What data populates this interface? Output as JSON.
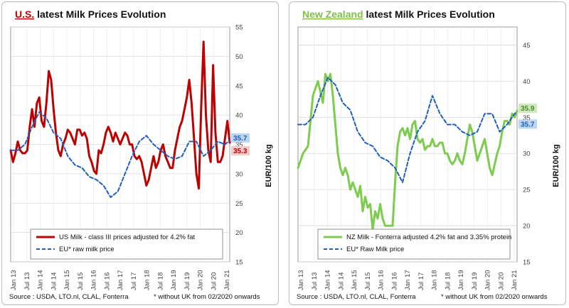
{
  "chart_data": [
    {
      "type": "line",
      "title_country": "U.S.",
      "title_rest": " latest Milk Prices Evolution",
      "accent_color": "#c00000",
      "ylabel": "EUR/100 kg",
      "ylim": [
        15,
        55
      ],
      "yticks": [
        15,
        20,
        25,
        30,
        35,
        40,
        45,
        50,
        55
      ],
      "x_labels": [
        "Jan 13",
        "Jul 13",
        "Jan 14",
        "Jul 14",
        "Jan 15",
        "Jul 15",
        "Jan 16",
        "Jul 16",
        "Jan 17",
        "Jul 17",
        "Jan 18",
        "Jul 18",
        "Jan 19",
        "Jul 19",
        "Jan 20",
        "Jul 20",
        "Jan 21"
      ],
      "series": [
        {
          "name": "US Milk - class III prices adjusted for 4.2% fat",
          "color": "#c00000",
          "style": "solid",
          "values": [
            [
              0,
              34
            ],
            [
              1,
              32
            ],
            [
              2,
              33.5
            ],
            [
              3,
              35.5
            ],
            [
              4,
              34
            ],
            [
              5,
              33.5
            ],
            [
              6,
              33.5
            ],
            [
              7,
              34
            ],
            [
              8,
              38
            ],
            [
              9,
              41
            ],
            [
              10,
              38
            ],
            [
              11,
              42
            ],
            [
              12,
              43
            ],
            [
              13,
              39
            ],
            [
              14,
              38
            ],
            [
              15,
              42
            ],
            [
              16,
              47.5
            ],
            [
              17,
              46
            ],
            [
              18,
              41
            ],
            [
              19,
              37
            ],
            [
              20,
              34
            ],
            [
              21,
              33
            ],
            [
              22,
              35
            ],
            [
              23,
              36
            ],
            [
              24,
              37.5
            ],
            [
              25,
              37
            ],
            [
              26,
              36
            ],
            [
              27,
              35
            ],
            [
              28,
              37.5
            ],
            [
              29,
              37.5
            ],
            [
              30,
              36.5
            ],
            [
              31,
              37
            ],
            [
              32,
              36
            ],
            [
              33,
              33
            ],
            [
              34,
              32
            ],
            [
              35,
              30.5
            ],
            [
              36,
              30
            ],
            [
              37,
              34
            ],
            [
              38,
              33.5
            ],
            [
              39,
              35
            ],
            [
              40,
              37
            ],
            [
              41,
              38
            ],
            [
              42,
              37
            ],
            [
              43,
              35.5
            ],
            [
              44,
              37
            ],
            [
              45,
              36
            ],
            [
              46,
              35
            ],
            [
              47,
              36
            ],
            [
              48,
              37
            ],
            [
              49,
              36.5
            ],
            [
              50,
              35
            ],
            [
              51,
              35
            ],
            [
              52,
              33
            ],
            [
              53,
              32.5
            ],
            [
              54,
              33
            ],
            [
              55,
              32
            ],
            [
              56,
              30
            ],
            [
              57,
              28
            ],
            [
              58,
              29
            ],
            [
              59,
              31
            ],
            [
              60,
              33
            ],
            [
              61,
              31
            ],
            [
              62,
              32
            ],
            [
              63,
              34
            ],
            [
              64,
              35
            ],
            [
              65,
              33
            ],
            [
              66,
              32
            ],
            [
              67,
              31
            ],
            [
              68,
              31
            ],
            [
              69,
              34
            ],
            [
              70,
              36
            ],
            [
              71,
              38
            ],
            [
              72,
              39
            ],
            [
              73,
              41
            ],
            [
              74,
              43
            ],
            [
              75,
              46
            ],
            [
              76,
              42
            ],
            [
              77,
              36
            ],
            [
              78,
              30
            ],
            [
              79,
              27.5
            ],
            [
              80,
              41
            ],
            [
              81,
              52.5
            ],
            [
              82,
              40
            ],
            [
              83,
              34
            ],
            [
              84,
              32
            ],
            [
              85,
              48.5
            ],
            [
              86,
              37
            ],
            [
              87,
              32
            ],
            [
              88,
              32
            ],
            [
              89,
              33
            ],
            [
              90,
              36
            ],
            [
              91,
              39
            ],
            [
              92,
              35.3
            ]
          ]
        },
        {
          "name": "EU* raw milk price",
          "color": "#1f5fbf",
          "style": "dashed",
          "values": [
            [
              0,
              34
            ],
            [
              3,
              34
            ],
            [
              6,
              35
            ],
            [
              9,
              38
            ],
            [
              12,
              40.5
            ],
            [
              15,
              39.5
            ],
            [
              18,
              37
            ],
            [
              21,
              36
            ],
            [
              24,
              33
            ],
            [
              27,
              31.5
            ],
            [
              30,
              31
            ],
            [
              33,
              29.5
            ],
            [
              36,
              29
            ],
            [
              39,
              28
            ],
            [
              42,
              26
            ],
            [
              45,
              27
            ],
            [
              48,
              30
            ],
            [
              51,
              33
            ],
            [
              54,
              35.5
            ],
            [
              57,
              36.5
            ],
            [
              60,
              35
            ],
            [
              63,
              34
            ],
            [
              66,
              33
            ],
            [
              69,
              32.5
            ],
            [
              72,
              33
            ],
            [
              75,
              35.5
            ],
            [
              78,
              35.5
            ],
            [
              81,
              33
            ],
            [
              84,
              34
            ],
            [
              87,
              35.5
            ],
            [
              90,
              35
            ],
            [
              92,
              35.7
            ]
          ]
        }
      ],
      "end_labels": [
        {
          "text": "35.7",
          "bg": "#bcd6ee",
          "color": "#1f5fbf"
        },
        {
          "text": "35.3",
          "bg": "#f5c9c9",
          "color": "#c00000"
        }
      ],
      "source": "Source : USDA, LTO.nl, CLAL, Fonterra",
      "footnote": "* without UK from 02/2020 onwards"
    },
    {
      "type": "line",
      "title_country": "New Zealand",
      "title_rest": " latest Milk Prices Evolution",
      "accent_color": "#7dbf4a",
      "ylabel": "EUR/100 kg",
      "ylim": [
        15,
        47.5
      ],
      "yticks": [
        15,
        20,
        25,
        30,
        35,
        40,
        45
      ],
      "x_labels": [
        "Jan 13",
        "Jul 13",
        "Jan 14",
        "Jul 14",
        "Jan 15",
        "Jul 15",
        "Jan 16",
        "Jul 16",
        "Jan 17",
        "Jul 17",
        "Jan 18",
        "Jul 18",
        "Jan 19",
        "Jul 19",
        "Jan 20",
        "Jul 20",
        "Jan 21"
      ],
      "series": [
        {
          "name": "NZ Milk - Fonterra adjusted 4.2% fat and 3.35% protein",
          "color": "#7dcc4e",
          "style": "solid",
          "values": [
            [
              0,
              28
            ],
            [
              2,
              30
            ],
            [
              4,
              31
            ],
            [
              6,
              38
            ],
            [
              8,
              40
            ],
            [
              10,
              37
            ],
            [
              11,
              41
            ],
            [
              12,
              40
            ],
            [
              13,
              41
            ],
            [
              14,
              38
            ],
            [
              15,
              34
            ],
            [
              16,
              30
            ],
            [
              17,
              28
            ],
            [
              18,
              27
            ],
            [
              19,
              28
            ],
            [
              20,
              27
            ],
            [
              21,
              25
            ],
            [
              22,
              26
            ],
            [
              23,
              25
            ],
            [
              24,
              24
            ],
            [
              25,
              25.5
            ],
            [
              26,
              22
            ],
            [
              27,
              24
            ],
            [
              28,
              22.5
            ],
            [
              29,
              23
            ],
            [
              30,
              19.5
            ],
            [
              31,
              22
            ],
            [
              32,
              21
            ],
            [
              33,
              23
            ],
            [
              34,
              21
            ],
            [
              35,
              20
            ],
            [
              36,
              20
            ],
            [
              37,
              20
            ],
            [
              38,
              20
            ],
            [
              39,
              26
            ],
            [
              40,
              31
            ],
            [
              41,
              33
            ],
            [
              42,
              33.5
            ],
            [
              43,
              32.5
            ],
            [
              44,
              33.5
            ],
            [
              45,
              32
            ],
            [
              46,
              34
            ],
            [
              47,
              34.5
            ],
            [
              48,
              32
            ],
            [
              49,
              31.5
            ],
            [
              50,
              32
            ],
            [
              51,
              30.5
            ],
            [
              52,
              31
            ],
            [
              53,
              31
            ],
            [
              54,
              32
            ],
            [
              55,
              31
            ],
            [
              56,
              31
            ],
            [
              57,
              31.5
            ],
            [
              58,
              31.5
            ],
            [
              59,
              30
            ],
            [
              60,
              30
            ],
            [
              61,
              29
            ],
            [
              62,
              28.5
            ],
            [
              63,
              29
            ],
            [
              64,
              30
            ],
            [
              65,
              29
            ],
            [
              66,
              28.5
            ],
            [
              67,
              30
            ],
            [
              68,
              32
            ],
            [
              69,
              34
            ],
            [
              70,
              33
            ],
            [
              71,
              31
            ],
            [
              72,
              29
            ],
            [
              73,
              30
            ],
            [
              74,
              31
            ],
            [
              75,
              32
            ],
            [
              76,
              30
            ],
            [
              77,
              28
            ],
            [
              78,
              27
            ],
            [
              79,
              28.5
            ],
            [
              80,
              30
            ],
            [
              81,
              31
            ],
            [
              82,
              33
            ],
            [
              83,
              34.5
            ],
            [
              84,
              34.5
            ],
            [
              85,
              34
            ],
            [
              86,
              35.5
            ],
            [
              87,
              35
            ],
            [
              88,
              35.9
            ]
          ]
        },
        {
          "name": "EU* Raw Milk price",
          "color": "#1f5fbf",
          "style": "dashed",
          "values": [
            [
              0,
              34
            ],
            [
              3,
              34
            ],
            [
              6,
              35
            ],
            [
              9,
              38
            ],
            [
              12,
              40.5
            ],
            [
              15,
              39.5
            ],
            [
              18,
              37
            ],
            [
              21,
              36
            ],
            [
              24,
              33
            ],
            [
              27,
              31.5
            ],
            [
              30,
              31
            ],
            [
              33,
              29.5
            ],
            [
              36,
              29
            ],
            [
              39,
              28
            ],
            [
              42,
              26
            ],
            [
              45,
              30
            ],
            [
              48,
              33
            ],
            [
              51,
              34.5
            ],
            [
              54,
              38
            ],
            [
              57,
              35.5
            ],
            [
              60,
              34
            ],
            [
              63,
              34
            ],
            [
              66,
              33
            ],
            [
              69,
              32.5
            ],
            [
              72,
              33
            ],
            [
              75,
              35.5
            ],
            [
              78,
              35.5
            ],
            [
              81,
              33
            ],
            [
              84,
              34
            ],
            [
              87,
              35.5
            ],
            [
              88,
              35.7
            ]
          ]
        }
      ],
      "end_labels": [
        {
          "text": "35.9",
          "bg": "#cfe8bf",
          "color": "#4a8f23"
        },
        {
          "text": "35.7",
          "bg": "#bcd6ee",
          "color": "#1f5fbf"
        }
      ],
      "source": "Source : USDA, LTO.nl, CLAL, Fonterra",
      "footnote": "* without UK from 02/2020 onwards"
    }
  ]
}
